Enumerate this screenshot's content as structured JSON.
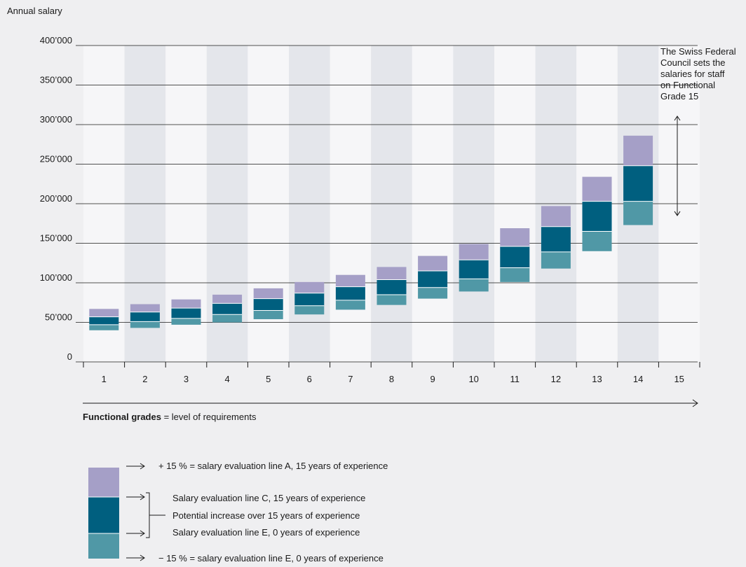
{
  "chart_data": {
    "type": "bar",
    "ylabel": "Annual salary",
    "xlabel_bold": "Functional grades",
    "xlabel_rest": " = level of requirements",
    "ylim": [
      0,
      400000
    ],
    "yticks": [
      0,
      50000,
      100000,
      150000,
      200000,
      250000,
      300000,
      350000,
      400000
    ],
    "ytick_labels": [
      "0",
      "50’000",
      "100’000",
      "150’000",
      "200’000",
      "250’000",
      "300’000",
      "350’000",
      "400’000"
    ],
    "categories": [
      "1",
      "2",
      "3",
      "4",
      "5",
      "6",
      "7",
      "8",
      "9",
      "10",
      "11",
      "12",
      "13",
      "14",
      "15"
    ],
    "series": [
      {
        "name": "−15 % = salary evaluation line E, 0 years of experience",
        "values": [
          40000,
          43000,
          47000,
          50000,
          54000,
          60000,
          66000,
          72000,
          80000,
          89000,
          101000,
          118000,
          140000,
          173000,
          null
        ]
      },
      {
        "name": "Salary evaluation line E, 0 years of experience",
        "values": [
          47000,
          51000,
          55000,
          60000,
          65000,
          71000,
          78000,
          85000,
          94000,
          105000,
          119000,
          139000,
          165000,
          203000,
          null
        ]
      },
      {
        "name": "Salary evaluation line C, 15 years of experience",
        "values": [
          57000,
          63000,
          68000,
          74000,
          80000,
          87000,
          95000,
          104000,
          115000,
          129000,
          146000,
          171000,
          203000,
          248000,
          null
        ]
      },
      {
        "name": "+15 % = salary evaluation line A, 15 years of experience",
        "values": [
          67000,
          73000,
          79000,
          85000,
          93000,
          101000,
          110000,
          120000,
          134000,
          149000,
          169000,
          197000,
          234000,
          286000,
          null
        ]
      }
    ],
    "colors": {
      "top": "#a59fc7",
      "middle": "#005f7f",
      "bottom": "#5098a6",
      "band_light": "#f6f6f8",
      "band_dark": "#e4e6eb",
      "background": "#efeff1"
    },
    "annotation": {
      "lines": [
        "The Swiss Federal",
        "Council sets the",
        "salaries for staff",
        "on Functional",
        "Grade 15"
      ]
    },
    "legend": {
      "line_a": "+ 15 % = salary evaluation line A, 15 years of experience",
      "line_c": "Salary evaluation line C, 15 years of experience",
      "potential": "Potential increase over 15 years of experience",
      "line_e": "Salary evaluation line E, 0 years of experience",
      "line_e_minus": "− 15 % = salary evaluation line E, 0 years of experience"
    }
  }
}
